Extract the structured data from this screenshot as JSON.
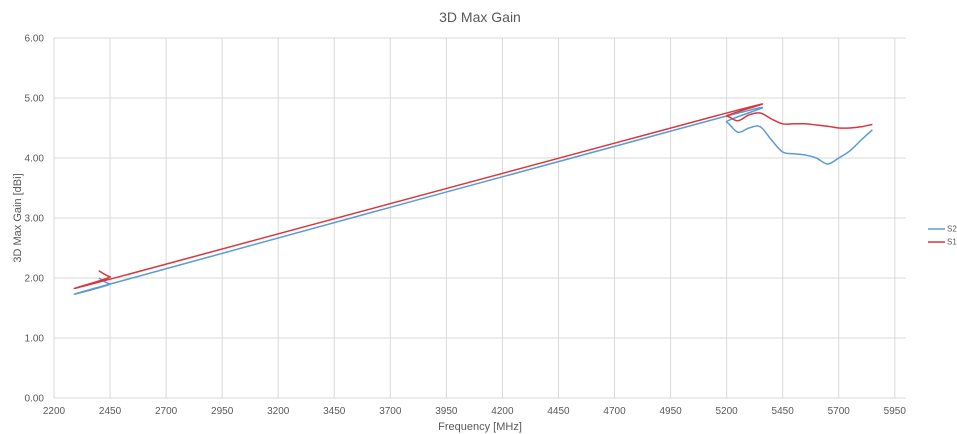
{
  "chart_data": {
    "type": "line",
    "title": "3D Max Gain",
    "xlabel": "Frequency [MHz]",
    "ylabel": "3D Max Gain [dBi]",
    "xlim": [
      2200,
      6000
    ],
    "ylim": [
      0,
      6
    ],
    "xticks": [
      2200,
      2450,
      2700,
      2950,
      3200,
      3450,
      3700,
      3950,
      4200,
      4450,
      4700,
      4950,
      5200,
      5450,
      5700,
      5950
    ],
    "yticks": [
      0,
      1,
      2,
      3,
      4,
      5,
      6
    ],
    "ytick_labels": [
      "0.00",
      "1.00",
      "2.00",
      "3.00",
      "4.00",
      "5.00",
      "6.00"
    ],
    "grid": true,
    "legend_position": "right",
    "series": [
      {
        "name": "S2",
        "color": "#5B9BD5",
        "x": [
          2400,
          2450,
          2500,
          5150,
          5200,
          5250,
          5300,
          5350,
          5400,
          5450,
          5500,
          5550,
          5600,
          5650,
          5700,
          5750,
          5800,
          5850
        ],
        "y": [
          2.0,
          1.9,
          1.95,
          4.65,
          4.6,
          4.43,
          4.5,
          4.52,
          4.3,
          4.1,
          4.07,
          4.05,
          4.0,
          3.9,
          4.0,
          4.12,
          4.3,
          4.47
        ]
      },
      {
        "name": "S1",
        "color": "#D9363E",
        "x": [
          2400,
          2450,
          2500,
          5150,
          5200,
          5250,
          5300,
          5350,
          5400,
          5450,
          5500,
          5550,
          5600,
          5650,
          5700,
          5750,
          5800,
          5850
        ],
        "y": [
          2.12,
          2.02,
          2.03,
          4.7,
          4.7,
          4.62,
          4.72,
          4.75,
          4.65,
          4.57,
          4.57,
          4.57,
          4.55,
          4.53,
          4.5,
          4.5,
          4.52,
          4.56
        ]
      }
    ]
  }
}
